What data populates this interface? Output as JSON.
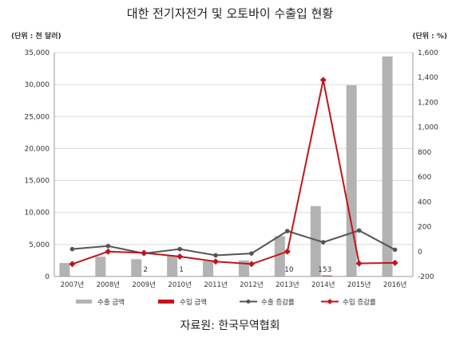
{
  "chart_data": {
    "type": "bar",
    "title": "대한 전기자전거 및 오토바이 수출입 현황",
    "y_left_unit": "(단위 : 천 달러)",
    "y_right_unit": "(단위 : %)",
    "categories": [
      "2007년",
      "2008년",
      "2009년",
      "2010년",
      "2011년",
      "2012년",
      "2013년",
      "2014년",
      "2015년",
      "2016년"
    ],
    "y_left_ticks": [
      "0",
      "5,000",
      "10,000",
      "15,000",
      "20,000",
      "25,000",
      "30,000",
      "35,000"
    ],
    "y_right_ticks": [
      "-200",
      "0",
      "200",
      "400",
      "600",
      "800",
      "1,000",
      "1,200",
      "1,400",
      "1,600"
    ],
    "ylim_left": [
      0,
      35000
    ],
    "ylim_right": [
      -200,
      1600
    ],
    "series": [
      {
        "name": "수출 금액",
        "kind": "bar",
        "axis": "left",
        "color": "#b3b3b3",
        "values": [
          2100,
          3100,
          2700,
          3300,
          2400,
          2500,
          6300,
          11000,
          29900,
          34400
        ]
      },
      {
        "name": "수입 금액",
        "kind": "bar",
        "axis": "left",
        "color": "#c0151b",
        "values": [
          0,
          0,
          2,
          1,
          0,
          0,
          10,
          153,
          0,
          0
        ]
      },
      {
        "name": "수출 증감률",
        "kind": "line",
        "axis": "right",
        "color": "#555555",
        "values": [
          20,
          45,
          -15,
          20,
          -30,
          -15,
          165,
          75,
          170,
          15
        ]
      },
      {
        "name": "수입 증감률",
        "kind": "line",
        "axis": "right",
        "color": "#c0151b",
        "values": [
          -100,
          0,
          -10,
          -40,
          -80,
          -100,
          0,
          1380,
          -95,
          -90
        ]
      }
    ],
    "data_labels": [
      {
        "category_index": 2,
        "text": "2"
      },
      {
        "category_index": 3,
        "text": "1"
      },
      {
        "category_index": 6,
        "text": "10"
      },
      {
        "category_index": 7,
        "text": "153"
      }
    ],
    "grid": true,
    "legend_position": "bottom",
    "source": "자료원: 한국무역협회"
  }
}
